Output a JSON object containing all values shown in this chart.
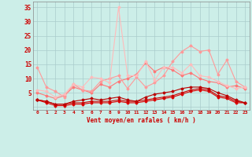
{
  "background_color": "#cceee8",
  "grid_color": "#aacccc",
  "x_labels": [
    "0",
    "1",
    "2",
    "3",
    "4",
    "5",
    "6",
    "7",
    "8",
    "9",
    "10",
    "11",
    "12",
    "13",
    "14",
    "15",
    "16",
    "17",
    "18",
    "19",
    "20",
    "21",
    "22",
    "23"
  ],
  "x_values": [
    0,
    1,
    2,
    3,
    4,
    5,
    6,
    7,
    8,
    9,
    10,
    11,
    12,
    13,
    14,
    15,
    16,
    17,
    18,
    19,
    20,
    21,
    22,
    23
  ],
  "ylabel": "Vent moyen/en rafales ( km/h )",
  "ylim": [
    -1,
    37
  ],
  "yticks": [
    0,
    5,
    10,
    15,
    20,
    25,
    30,
    35
  ],
  "arrows": [
    "↗",
    "↗",
    "↗",
    "↗",
    "↘",
    "↘",
    "↓",
    "↓",
    "→",
    "↑",
    "←",
    "←",
    "→",
    "↘",
    "↘",
    "↓",
    "↘",
    "↘",
    "↘",
    "↘",
    "↘",
    "↘",
    "←",
    "↑"
  ],
  "series": [
    {
      "color": "#dd0000",
      "linewidth": 0.8,
      "marker": "D",
      "markersize": 1.5,
      "values": [
        2.5,
        1.5,
        0.5,
        0.5,
        1.0,
        1.0,
        1.5,
        1.5,
        1.5,
        2.0,
        1.5,
        1.5,
        2.0,
        2.5,
        3.0,
        3.5,
        4.5,
        5.5,
        6.0,
        5.5,
        3.5,
        3.0,
        1.5,
        1.5
      ]
    },
    {
      "color": "#cc0000",
      "linewidth": 0.8,
      "marker": "D",
      "markersize": 1.5,
      "values": [
        2.5,
        2.0,
        1.0,
        1.0,
        1.5,
        1.5,
        2.0,
        2.0,
        2.0,
        2.5,
        2.0,
        2.0,
        2.5,
        3.0,
        3.5,
        4.0,
        5.0,
        6.0,
        6.5,
        6.0,
        4.0,
        3.5,
        2.0,
        1.5
      ]
    },
    {
      "color": "#bb0000",
      "linewidth": 0.8,
      "marker": "D",
      "markersize": 1.5,
      "values": [
        2.5,
        2.0,
        1.0,
        1.0,
        2.0,
        2.5,
        3.0,
        2.5,
        3.0,
        3.5,
        2.5,
        2.0,
        3.5,
        4.5,
        5.0,
        5.5,
        6.5,
        7.0,
        7.0,
        6.5,
        5.0,
        4.0,
        2.5,
        1.5
      ]
    },
    {
      "color": "#ff7777",
      "linewidth": 0.8,
      "marker": "D",
      "markersize": 1.5,
      "values": [
        5.0,
        4.0,
        3.0,
        4.0,
        7.0,
        6.0,
        5.0,
        8.0,
        7.0,
        9.0,
        10.0,
        11.5,
        15.5,
        12.5,
        14.0,
        13.0,
        11.0,
        12.0,
        10.0,
        9.0,
        8.5,
        7.0,
        7.5,
        6.5
      ]
    },
    {
      "color": "#ff9999",
      "linewidth": 0.8,
      "marker": "D",
      "markersize": 1.5,
      "values": [
        14.0,
        7.0,
        5.5,
        3.5,
        8.0,
        6.0,
        5.5,
        9.0,
        10.0,
        11.0,
        6.5,
        10.5,
        7.0,
        8.5,
        11.0,
        16.0,
        19.5,
        21.5,
        19.5,
        20.0,
        11.5,
        16.5,
        9.0,
        7.0
      ]
    },
    {
      "color": "#ffbbbb",
      "linewidth": 0.8,
      "marker": "D",
      "markersize": 1.5,
      "values": [
        6.0,
        5.5,
        3.5,
        4.5,
        8.0,
        7.0,
        10.5,
        10.0,
        8.5,
        35.0,
        11.0,
        11.0,
        16.0,
        9.5,
        14.0,
        14.0,
        12.0,
        15.0,
        11.0,
        10.5,
        9.0,
        7.5,
        6.5,
        7.0
      ]
    }
  ]
}
